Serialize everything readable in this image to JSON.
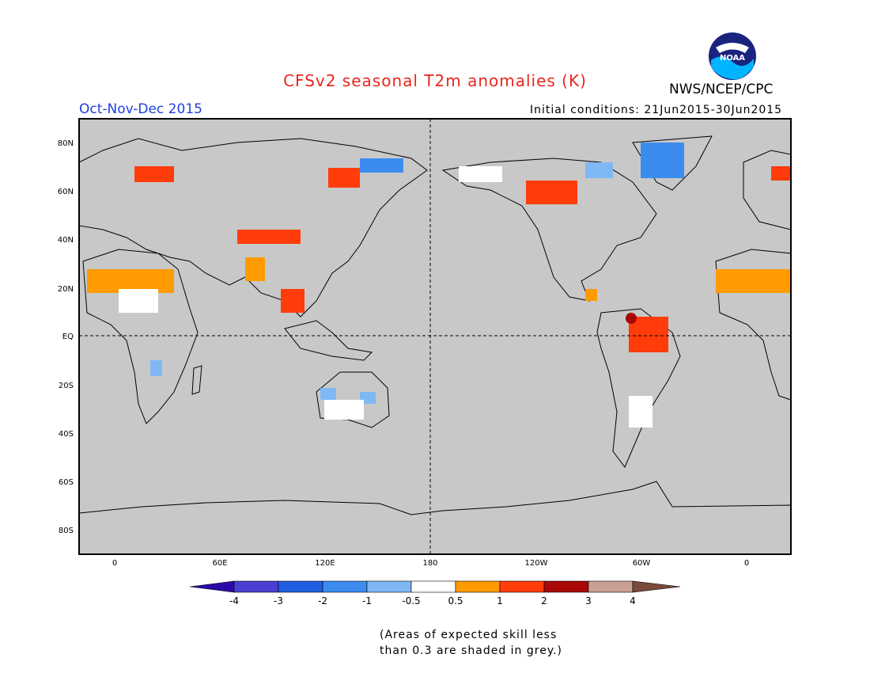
{
  "header": {
    "title": "CFSv2 seasonal T2m anomalies (K)",
    "season": "Oct-Nov-Dec 2015",
    "initial_conditions": "Initial conditions: 21Jun2015-30Jun2015",
    "agency": "NWS/NCEP/CPC",
    "logo_text": "NOAA"
  },
  "map": {
    "lat_labels": [
      "80N",
      "60N",
      "40N",
      "20N",
      "EQ",
      "20S",
      "40S",
      "60S",
      "80S"
    ],
    "lon_labels": [
      "0",
      "60E",
      "120E",
      "180",
      "120W",
      "60W",
      "0"
    ],
    "ocean_color": "#c8c8c8"
  },
  "colorbar": {
    "labels": [
      "-4",
      "-3",
      "-2",
      "-1",
      "-0.5",
      "0.5",
      "1",
      "2",
      "3",
      "4"
    ],
    "colors": [
      "#2c0aa8",
      "#4a3fd0",
      "#1f5ee0",
      "#3c8cf0",
      "#7fb8f5",
      "#ffffff",
      "#ff9a00",
      "#ff3c0a",
      "#a80808",
      "#c9a094",
      "#7a4a3a"
    ]
  },
  "footnote": {
    "line1": "(Areas of expected skill less",
    "line2": "than 0.3 are shaded in grey.)"
  }
}
